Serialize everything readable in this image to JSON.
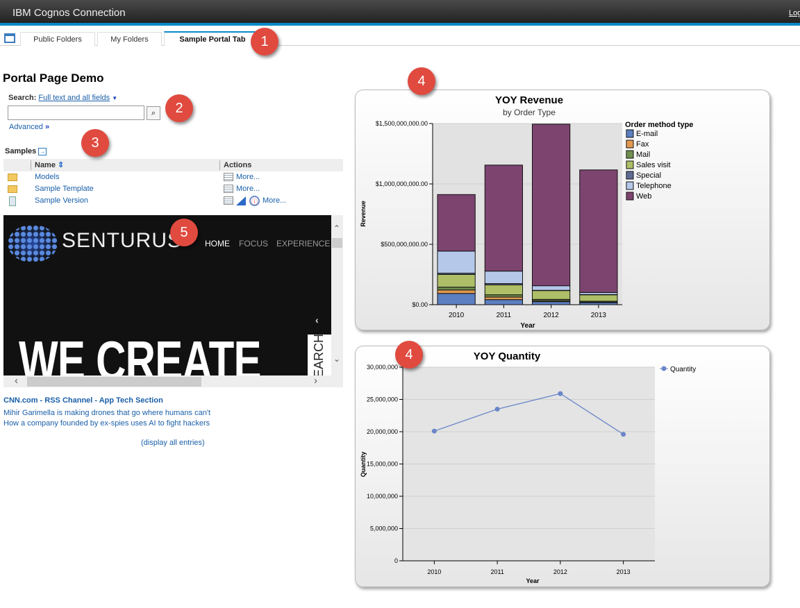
{
  "header": {
    "title": "IBM Cognos Connection",
    "logoff": "Log Off"
  },
  "tabs": [
    {
      "label": "Public Folders"
    },
    {
      "label": "My Folders"
    },
    {
      "label": "Sample Portal Tab",
      "active": true
    }
  ],
  "page_title": "Portal Page Demo",
  "search": {
    "label": "Search:",
    "scope": "Full text and all fields",
    "value": "",
    "advanced": "Advanced"
  },
  "samples": {
    "title": "Samples",
    "columns": [
      "Name",
      "Actions"
    ],
    "rows": [
      {
        "name": "Models",
        "icon": "folder-icon",
        "actions": "More..."
      },
      {
        "name": "Sample Template",
        "icon": "folder-icon",
        "actions": "More..."
      },
      {
        "name": "Sample Version",
        "icon": "report-version-icon",
        "actions": "More..."
      }
    ]
  },
  "web_frame": {
    "logo": "SENTURUS",
    "nav": [
      "HOME",
      "FOCUS",
      "EXPERIENCE"
    ],
    "headline": "WE CREATE",
    "side_tab": "SEARCH"
  },
  "rss": {
    "title": "CNN.com - RSS Channel - App Tech Section",
    "items": [
      "Mihir Garimella is making drones that go where humans can't",
      "How a company founded by ex-spies uses AI to fight hackers"
    ],
    "display_all": "(display all entries)"
  },
  "callouts": [
    "1",
    "2",
    "3",
    "4",
    "4",
    "5"
  ],
  "chart_data": [
    {
      "type": "bar",
      "stacked": true,
      "title": "YOY Revenue",
      "subtitle": "by Order Type",
      "xlabel": "Year",
      "ylabel": "Revenue",
      "categories": [
        "2010",
        "2011",
        "2012",
        "2013"
      ],
      "ylim": [
        0,
        1500000000
      ],
      "yticks": [
        "$0.00",
        "$500,000,000.00",
        "$1,000,000,000.00",
        "$1,500,000,000.00"
      ],
      "legend_title": "Order method type",
      "legend": "right",
      "grid": true,
      "series": [
        {
          "name": "E-mail",
          "color": "#5b7fc0",
          "values": [
            93000000,
            42000000,
            25000000,
            17000000
          ]
        },
        {
          "name": "Fax",
          "color": "#e39a50",
          "values": [
            29000000,
            21000000,
            8000000,
            4000000
          ]
        },
        {
          "name": "Mail",
          "color": "#6f8f4f",
          "values": [
            23000000,
            19000000,
            11000000,
            8000000
          ]
        },
        {
          "name": "Sales visit",
          "color": "#aebf68",
          "values": [
            105000000,
            82000000,
            73000000,
            53000000
          ]
        },
        {
          "name": "Special",
          "color": "#5f6a95",
          "values": [
            11000000,
            11000000,
            2000000,
            2000000
          ]
        },
        {
          "name": "Telephone",
          "color": "#b5c8ea",
          "values": [
            183000000,
            103000000,
            38000000,
            17000000
          ]
        },
        {
          "name": "Web",
          "color": "#7d4470",
          "values": [
            468000000,
            878000000,
            1338000000,
            1015000000
          ]
        }
      ]
    },
    {
      "type": "line",
      "title": "YOY Quantity",
      "xlabel": "Year",
      "ylabel": "Quantity",
      "categories": [
        "2010",
        "2011",
        "2012",
        "2013"
      ],
      "ylim": [
        0,
        30000000
      ],
      "yticks": [
        "0",
        "5,000,000",
        "10,000,000",
        "15,000,000",
        "20,000,000",
        "25,000,000",
        "30,000,000"
      ],
      "legend": "top-right",
      "grid": true,
      "series": [
        {
          "name": "Quantity",
          "color": "#6a86c8",
          "values": [
            20100000,
            23500000,
            25900000,
            19600000
          ]
        }
      ]
    }
  ]
}
